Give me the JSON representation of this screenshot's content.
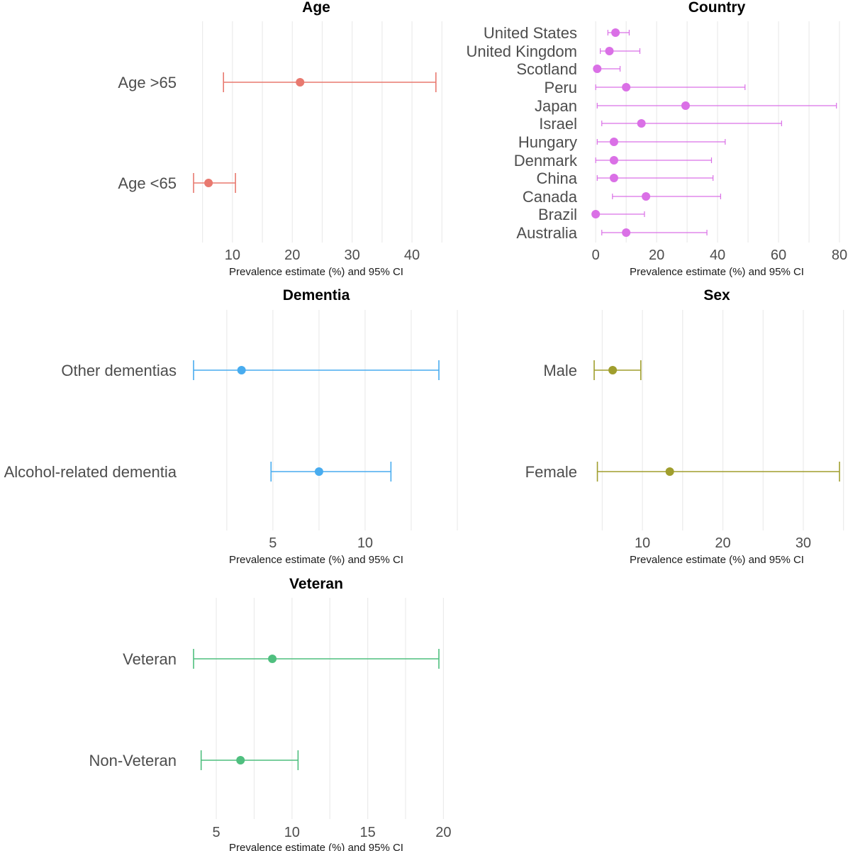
{
  "chart_data": [
    {
      "type": "scatter",
      "title": "Age",
      "xlabel": "Prevalence estimate (%) and 95% CI",
      "color": "#E8796F",
      "xlim": [
        3.5,
        44.5
      ],
      "xticks": [
        "10",
        "20",
        "30",
        "40"
      ],
      "categories": [
        "Age >65",
        "Age <65"
      ],
      "estimate": [
        21.3,
        6.0
      ],
      "ci_lower": [
        8.5,
        3.5
      ],
      "ci_upper": [
        44.0,
        10.5
      ]
    },
    {
      "type": "scatter",
      "title": "Country",
      "xlabel": "Prevalence estimate (%) and 95% CI",
      "color": "#DA70E6",
      "xlim": [
        -0.5,
        80
      ],
      "xticks": [
        "0",
        "20",
        "40",
        "60",
        "80"
      ],
      "categories": [
        "United States",
        "United Kingdom",
        "Scotland",
        "Peru",
        "Japan",
        "Israel",
        "Hungary",
        "Denmark",
        "China",
        "Canada",
        "Brazil",
        "Australia"
      ],
      "estimate": [
        6.5,
        4.5,
        0.5,
        10.0,
        29.5,
        15.0,
        6.0,
        6.0,
        6.0,
        16.5,
        0.0,
        10.0
      ],
      "ci_lower": [
        4.0,
        1.5,
        0.0,
        0.0,
        0.5,
        2.0,
        0.5,
        0.0,
        0.5,
        5.5,
        0.0,
        2.0
      ],
      "ci_upper": [
        11.0,
        14.5,
        8.0,
        49.0,
        79.0,
        61.0,
        42.5,
        38.0,
        38.5,
        41.0,
        16.0,
        36.5
      ]
    },
    {
      "type": "scatter",
      "title": "Dementia",
      "xlabel": "Prevalence estimate (%) and 95% CI",
      "color": "#48ACEF",
      "xlim": [
        0.7,
        14.0
      ],
      "xticks": [
        "5",
        "10"
      ],
      "categories": [
        "Other dementias",
        "Alcohol-related dementia"
      ],
      "estimate": [
        3.3,
        7.5
      ],
      "ci_lower": [
        0.7,
        4.9
      ],
      "ci_upper": [
        14.0,
        11.4
      ]
    },
    {
      "type": "scatter",
      "title": "Sex",
      "xlabel": "Prevalence estimate (%) and 95% CI",
      "color": "#A09E2D",
      "xlim": [
        4.0,
        34.5
      ],
      "xticks": [
        "10",
        "20",
        "30"
      ],
      "categories": [
        "Male",
        "Female"
      ],
      "estimate": [
        6.3,
        13.4
      ],
      "ci_lower": [
        4.0,
        4.4
      ],
      "ci_upper": [
        9.8,
        34.5
      ]
    },
    {
      "type": "scatter",
      "title": "Veteran",
      "xlabel": "Prevalence estimate (%) and 95% CI",
      "color": "#4FBF7F",
      "xlim": [
        3.5,
        19.7
      ],
      "xticks": [
        "5",
        "10",
        "15",
        "20"
      ],
      "categories": [
        "Veteran",
        "Non-Veteran"
      ],
      "estimate": [
        8.7,
        6.6
      ],
      "ci_lower": [
        3.5,
        4.0
      ],
      "ci_upper": [
        19.7,
        10.4
      ]
    }
  ]
}
